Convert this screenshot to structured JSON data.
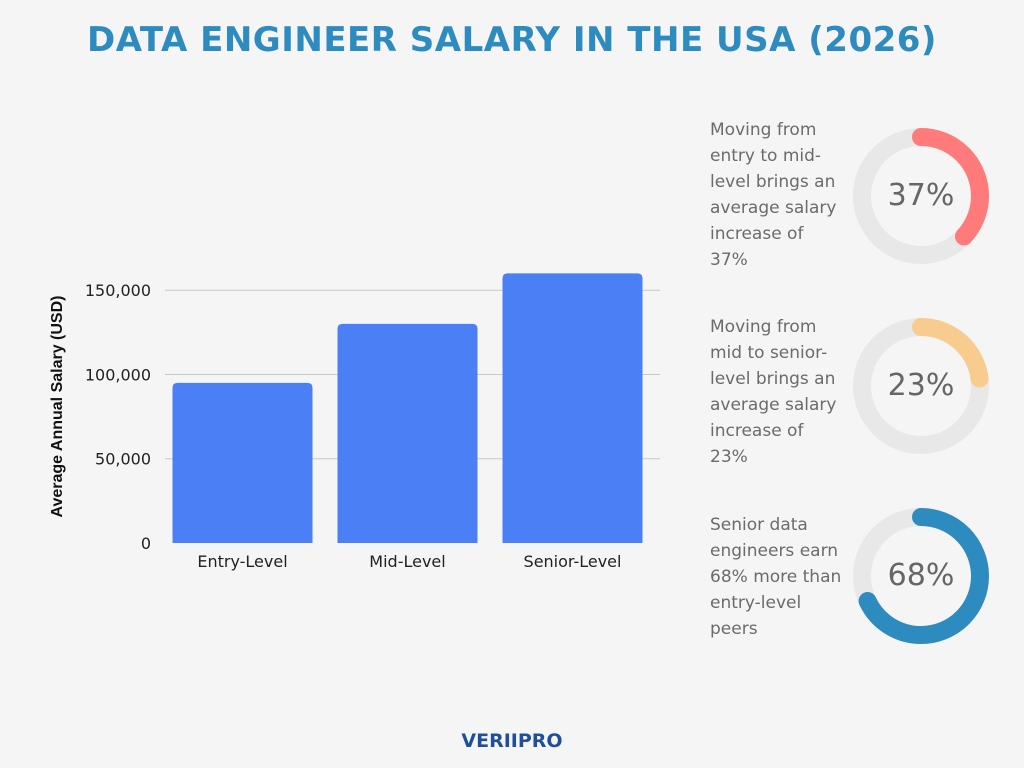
{
  "title": "DATA ENGINEER SALARY IN THE USA (2026)",
  "colors": {
    "title": "#2e8bc0",
    "bar": "#4a7ff5",
    "grid": "#c8c8c8",
    "ring_track": "#e8e8e8",
    "brand": "#1f4e9c"
  },
  "chart_data": {
    "type": "bar",
    "title": "",
    "xlabel": "",
    "ylabel": "Average Annual Salary (USD)",
    "categories": [
      "Entry-Level",
      "Mid-Level",
      "Senior-Level"
    ],
    "values": [
      95000,
      130000,
      160000
    ],
    "ylim": [
      0,
      160000
    ],
    "yticks": [
      0,
      50000,
      100000,
      150000
    ],
    "ytick_labels": [
      "0",
      "50,000",
      "100,000",
      "150,000"
    ],
    "grid": true,
    "legend": "none"
  },
  "stats": [
    {
      "text_lines": [
        "Moving from",
        "entry to mid-",
        "level brings an",
        "average salary",
        "increase of",
        "37%"
      ],
      "value_label": "37%",
      "percent": 37,
      "color": "#ff7a7a"
    },
    {
      "text_lines": [
        "Moving from",
        "mid to senior-",
        "level brings an",
        "average salary",
        "increase of",
        "23%"
      ],
      "value_label": "23%",
      "percent": 23,
      "color": "#f8cc8e"
    },
    {
      "text_lines": [
        "Senior data",
        "engineers earn",
        "68% more than",
        "entry-level",
        "peers"
      ],
      "value_label": "68%",
      "percent": 68,
      "color": "#2e8bc0"
    }
  ],
  "brand": "VERIIPRO"
}
